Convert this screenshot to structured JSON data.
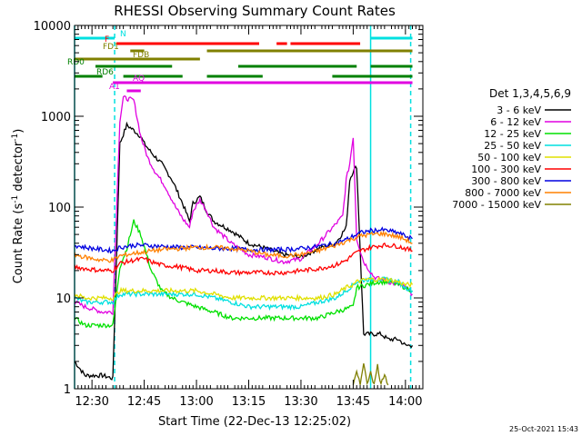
{
  "chart_data": {
    "type": "line",
    "title": "RHESSI Observing Summary Count Rates",
    "xlabel": "Start Time (22-Dec-13 12:25:02)",
    "ylabel_main": "Count Rate (s",
    "ylabel_sup": "-1",
    "ylabel_tail": " detector",
    "ylabel_sup2": "-1",
    "ylabel_close": ")",
    "yscale": "log",
    "ylim": [
      1,
      10000
    ],
    "xlim_minutes": [
      0,
      100
    ],
    "x_ticks": [
      {
        "label": "12:30",
        "minute": 5
      },
      {
        "label": "12:45",
        "minute": 20
      },
      {
        "label": "13:00",
        "minute": 35
      },
      {
        "label": "13:15",
        "minute": 50
      },
      {
        "label": "13:30",
        "minute": 65
      },
      {
        "label": "13:45",
        "minute": 80
      },
      {
        "label": "14:00",
        "minute": 95
      }
    ],
    "y_ticks": [
      {
        "label": "1",
        "value": 1
      },
      {
        "label": "10",
        "value": 10
      },
      {
        "label": "100",
        "value": 100
      },
      {
        "label": "1000",
        "value": 1000
      },
      {
        "label": "10000",
        "value": 10000
      }
    ],
    "legend_title": "Det 1,3,4,5,6,9",
    "legend_position": "right",
    "series": [
      {
        "name": "3 - 6 keV",
        "color": "#000000",
        "x": [
          0,
          3,
          8,
          11,
          13,
          15,
          17,
          19,
          20,
          22,
          25,
          28,
          31,
          33,
          34,
          36,
          38,
          40,
          45,
          50,
          55,
          60,
          65,
          70,
          75,
          78,
          79,
          80,
          81,
          83,
          85,
          88,
          90,
          93,
          95,
          97
        ],
        "y": [
          2,
          1.4,
          1.4,
          1.3,
          500,
          800,
          700,
          600,
          500,
          400,
          300,
          200,
          110,
          70,
          110,
          130,
          90,
          70,
          55,
          40,
          35,
          30,
          28,
          35,
          40,
          60,
          200,
          250,
          280,
          4,
          4,
          4,
          3.5,
          3.5,
          3,
          3
        ]
      },
      {
        "name": "6 - 12 keV",
        "color": "#e000e0",
        "x": [
          0,
          3,
          8,
          11,
          13,
          14,
          17,
          19,
          21,
          23,
          26,
          29,
          31,
          33,
          34,
          36,
          38,
          40,
          45,
          50,
          55,
          60,
          65,
          70,
          75,
          77,
          78,
          79,
          80,
          81,
          83,
          86,
          90,
          93,
          95,
          97
        ],
        "y": [
          9,
          8,
          7,
          7,
          900,
          1600,
          1500,
          600,
          350,
          250,
          170,
          100,
          75,
          60,
          90,
          120,
          90,
          60,
          40,
          30,
          28,
          25,
          27,
          40,
          65,
          80,
          200,
          300,
          600,
          45,
          25,
          17,
          15,
          14,
          13,
          11
        ]
      },
      {
        "name": "12 - 25 keV",
        "color": "#00e000",
        "x": [
          0,
          3,
          8,
          11,
          13,
          15,
          17,
          19,
          22,
          25,
          28,
          31,
          35,
          40,
          45,
          50,
          55,
          60,
          65,
          70,
          75,
          80,
          81,
          84,
          87,
          90,
          93,
          95,
          97
        ],
        "y": [
          6,
          5,
          5,
          5,
          22,
          35,
          70,
          50,
          20,
          12,
          10,
          9,
          8,
          7,
          6,
          6,
          6,
          6,
          6,
          6,
          7,
          8,
          13,
          14,
          15,
          15,
          14,
          13,
          12
        ]
      },
      {
        "name": "25 - 50 keV",
        "color": "#00e0e0",
        "x": [
          0,
          3,
          8,
          11,
          13,
          15,
          17,
          20,
          25,
          30,
          35,
          40,
          45,
          50,
          55,
          60,
          65,
          70,
          75,
          78,
          80,
          81,
          84,
          87,
          90,
          93,
          95,
          97
        ],
        "y": [
          10,
          9,
          9,
          9,
          11,
          11,
          11,
          11,
          11,
          11,
          11,
          10,
          9,
          8,
          8,
          8,
          8,
          9,
          10,
          12,
          14,
          15,
          16,
          16,
          16,
          15,
          13,
          12
        ]
      },
      {
        "name": "50 - 100 keV",
        "color": "#e0e000",
        "x": [
          0,
          3,
          8,
          11,
          13,
          15,
          17,
          20,
          25,
          30,
          35,
          40,
          45,
          50,
          55,
          60,
          65,
          70,
          75,
          78,
          80,
          81,
          84,
          87,
          90,
          93,
          95,
          97
        ],
        "y": [
          11,
          10,
          10,
          10,
          12,
          12,
          12,
          12,
          12,
          12,
          12,
          11,
          10,
          10,
          10,
          10,
          10,
          10,
          11,
          13,
          14,
          15,
          16,
          16,
          16,
          15,
          14,
          14
        ]
      },
      {
        "name": "100 - 300 keV",
        "color": "#ff0000",
        "x": [
          0,
          3,
          8,
          11,
          13,
          15,
          17,
          20,
          22,
          25,
          30,
          35,
          40,
          45,
          50,
          55,
          60,
          65,
          70,
          75,
          78,
          80,
          82,
          85,
          88,
          90,
          93,
          95,
          97
        ],
        "y": [
          22,
          21,
          20,
          20,
          24,
          25,
          26,
          27,
          25,
          23,
          22,
          20,
          20,
          19,
          19,
          19,
          19,
          20,
          21,
          23,
          26,
          30,
          33,
          36,
          38,
          38,
          37,
          35,
          33
        ]
      },
      {
        "name": "300 - 800 keV",
        "color": "#0000e0",
        "x": [
          0,
          3,
          8,
          11,
          13,
          15,
          17,
          20,
          25,
          30,
          35,
          40,
          45,
          50,
          55,
          60,
          65,
          70,
          75,
          78,
          80,
          82,
          85,
          88,
          90,
          93,
          95,
          97
        ],
        "y": [
          38,
          36,
          34,
          33,
          36,
          37,
          38,
          38,
          37,
          36,
          36,
          35,
          35,
          34,
          34,
          34,
          35,
          37,
          40,
          44,
          48,
          52,
          55,
          56,
          55,
          52,
          48,
          45
        ]
      },
      {
        "name": "800 - 7000 keV",
        "color": "#ff8000",
        "x": [
          0,
          3,
          8,
          11,
          13,
          15,
          17,
          20,
          22,
          25,
          30,
          35,
          40,
          45,
          50,
          55,
          60,
          65,
          70,
          75,
          78,
          80,
          82,
          85,
          88,
          90,
          93,
          95,
          97
        ],
        "y": [
          30,
          28,
          26,
          26,
          29,
          30,
          31,
          32,
          33,
          34,
          35,
          36,
          36,
          35,
          33,
          30,
          29,
          30,
          33,
          38,
          42,
          45,
          48,
          50,
          51,
          50,
          47,
          44,
          40
        ]
      },
      {
        "name": "7000 - 15000 keV",
        "color": "#808000",
        "x": [
          80,
          81,
          82,
          83,
          84,
          85,
          86,
          87,
          88,
          89,
          90
        ],
        "y": [
          1.1,
          1.5,
          1.1,
          2,
          1.1,
          1.6,
          1.1,
          1.8,
          1.1,
          1.5,
          1.1
        ]
      }
    ],
    "state_bars": [
      {
        "label": "N",
        "color": "#00e0e0",
        "segments": [
          [
            0,
            11.5
          ],
          [
            85,
            97
          ]
        ]
      },
      {
        "label": "F",
        "color": "#ff0000",
        "segments": [
          [
            12,
            53
          ],
          [
            58,
            61
          ],
          [
            62,
            82
          ]
        ]
      },
      {
        "label": "FD1",
        "color": "#808000",
        "segments": [
          [
            16,
            20
          ],
          [
            38,
            97
          ]
        ]
      },
      {
        "label": "FDB",
        "color": "#808000",
        "segments": [
          [
            0,
            36
          ]
        ]
      },
      {
        "label": "RD0",
        "color": "#008000",
        "segments": [
          [
            6,
            28
          ],
          [
            47,
            81
          ],
          [
            85,
            97
          ]
        ]
      },
      {
        "label": "RD6",
        "color": "#008000",
        "segments": [
          [
            0,
            8
          ],
          [
            14,
            31
          ],
          [
            38,
            54
          ],
          [
            74,
            97
          ]
        ]
      },
      {
        "label": "A1",
        "color": "#e000e0",
        "segments": [
          [
            15,
            19
          ]
        ]
      },
      {
        "label": "AQ",
        "color": "#e000e0",
        "segments": [
          [
            11,
            97
          ]
        ]
      }
    ],
    "vlines": [
      {
        "minute": 0,
        "color": "#00e0e0",
        "style": "solid"
      },
      {
        "minute": 11.5,
        "color": "#00e0e0",
        "style": "dashed"
      },
      {
        "minute": 85,
        "color": "#00e0e0",
        "style": "solid"
      },
      {
        "minute": 96.5,
        "color": "#00e0e0",
        "style": "dashed"
      }
    ]
  },
  "footer": {
    "timestamp": "25-Oct-2021 15:43"
  }
}
